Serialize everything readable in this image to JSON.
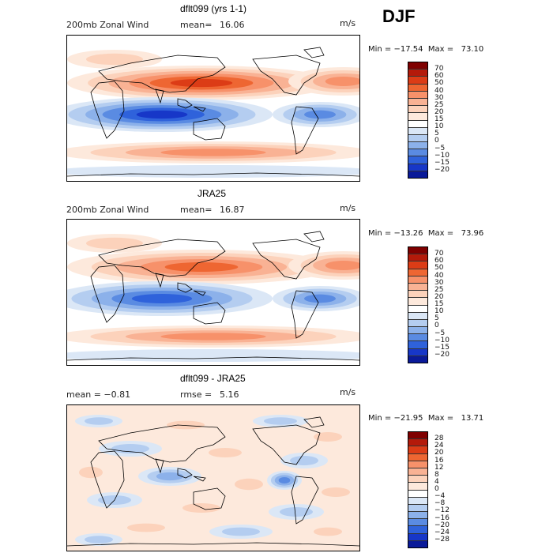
{
  "season": "DJF",
  "panels": [
    {
      "title": "dflt099 (yrs 1-1)",
      "left_label": "200mb  Zonal Wind",
      "stat_label": "mean=",
      "stat_value": "16.06",
      "units": "m/s",
      "minmax": "Min = −17.54  Max =   73.10",
      "colorbar": {
        "labels": [
          "70",
          "60",
          "50",
          "40",
          "30",
          "25",
          "20",
          "15",
          "10",
          "5",
          "0",
          "−5",
          "−10",
          "−15",
          "−20"
        ],
        "colors": [
          "#7f0000",
          "#b41a0a",
          "#dc3c16",
          "#ee6632",
          "#f7916a",
          "#f9b294",
          "#fcd2bb",
          "#fde9dc",
          "#ffffff",
          "#dbe7f6",
          "#b4cdf0",
          "#8cb1ea",
          "#5a8be2",
          "#2f62db",
          "#1737c8",
          "#0a1a99"
        ]
      },
      "field": "model"
    },
    {
      "title": "JRA25",
      "left_label": "200mb  Zonal Wind",
      "stat_label": "mean=",
      "stat_value": "16.87",
      "units": "m/s",
      "minmax": "Min = −13.26  Max =   73.96",
      "colorbar": {
        "labels": [
          "70",
          "60",
          "50",
          "40",
          "30",
          "25",
          "20",
          "15",
          "10",
          "5",
          "0",
          "−5",
          "−10",
          "−15",
          "−20"
        ],
        "colors": [
          "#7f0000",
          "#b41a0a",
          "#dc3c16",
          "#ee6632",
          "#f7916a",
          "#f9b294",
          "#fcd2bb",
          "#fde9dc",
          "#ffffff",
          "#dbe7f6",
          "#b4cdf0",
          "#8cb1ea",
          "#5a8be2",
          "#2f62db",
          "#1737c8",
          "#0a1a99"
        ]
      },
      "field": "obs"
    },
    {
      "title": "dflt099 - JRA25",
      "left_label": "mean =    −0.81",
      "stat_label": "rmse =",
      "stat_value": "5.16",
      "units": "m/s",
      "minmax": "Min = −21.95  Max =   13.71",
      "colorbar": {
        "labels": [
          "28",
          "24",
          "20",
          "16",
          "12",
          "8",
          "4",
          "0",
          "−4",
          "−8",
          "−12",
          "−16",
          "−20",
          "−24",
          "−28"
        ],
        "colors": [
          "#7f0000",
          "#b41a0a",
          "#dc3c16",
          "#ee6632",
          "#f7916a",
          "#f9b294",
          "#fcd2bb",
          "#fde9dc",
          "#ffffff",
          "#dbe7f6",
          "#b4cdf0",
          "#8cb1ea",
          "#5a8be2",
          "#2f62db",
          "#1737c8",
          "#0a1a99"
        ]
      },
      "field": "diff"
    }
  ]
}
